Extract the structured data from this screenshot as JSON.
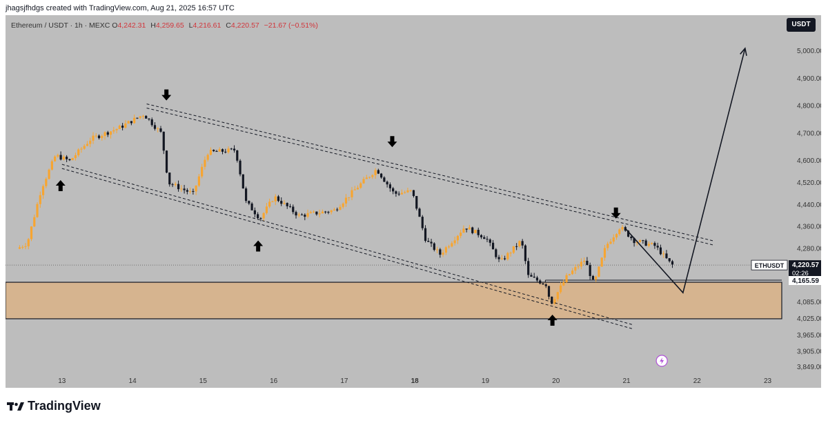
{
  "header": {
    "credit": "jhagsjfhdgs created with TradingView.com, Aug 21, 2025 16:57 UTC"
  },
  "legend": {
    "symbol": "Ethereum / USDT · 1h · MEXC",
    "o_label": "O",
    "o": "4,242.31",
    "h_label": "H",
    "h": "4,259.65",
    "l_label": "L",
    "l": "4,216.61",
    "c_label": "C",
    "c": "4,220.57",
    "change": "−21.67 (−0.51%)"
  },
  "currency_button": "USDT",
  "branding": {
    "name": "TradingView"
  },
  "colors": {
    "background": "#bdbdbd",
    "candle_up": "#f7a531",
    "candle_down": "#131722",
    "zone_fill": "#d6b48f",
    "label_bg": "#131722"
  },
  "icons": {
    "lightning": "lightning-icon",
    "arrow_up": "arrow-up-icon",
    "arrow_down": "arrow-down-icon"
  },
  "chart_data": {
    "type": "candlestick",
    "symbol": "ETHUSDT",
    "interval": "1h",
    "exchange": "MEXC",
    "x_ticks": [
      "13",
      "14",
      "15",
      "16",
      "17",
      "18",
      "19",
      "20",
      "21",
      "22",
      "23"
    ],
    "x_tick_days": [
      13,
      14,
      15,
      16,
      17,
      18,
      19,
      20,
      21,
      22,
      23
    ],
    "xlim": [
      12.2,
      23.2
    ],
    "y_ticks": [
      "5,000.00",
      "4,900.00",
      "4,800.00",
      "4,700.00",
      "4,600.00",
      "4,520.00",
      "4,440.00",
      "4,360.00",
      "4,280.00",
      "4,165.00",
      "4,085.00",
      "4,025.00",
      "3,965.00",
      "3,905.00",
      "3,849.00"
    ],
    "y_tick_values": [
      5000,
      4900,
      4800,
      4700,
      4600,
      4520,
      4440,
      4360,
      4280,
      4165,
      4085,
      4025,
      3965,
      3905,
      3849
    ],
    "ylim": [
      3830,
      5050
    ],
    "price_key": [
      {
        "day": 12.4,
        "price": 4280
      },
      {
        "day": 12.55,
        "price": 4300
      },
      {
        "day": 12.75,
        "price": 4500
      },
      {
        "day": 12.95,
        "price": 4620
      },
      {
        "day": 13.15,
        "price": 4600
      },
      {
        "day": 13.45,
        "price": 4680
      },
      {
        "day": 13.85,
        "price": 4720
      },
      {
        "day": 14.2,
        "price": 4770
      },
      {
        "day": 14.45,
        "price": 4700
      },
      {
        "day": 14.55,
        "price": 4520
      },
      {
        "day": 14.9,
        "price": 4480
      },
      {
        "day": 15.1,
        "price": 4630
      },
      {
        "day": 15.5,
        "price": 4640
      },
      {
        "day": 15.65,
        "price": 4450
      },
      {
        "day": 15.85,
        "price": 4390
      },
      {
        "day": 16.05,
        "price": 4470
      },
      {
        "day": 16.4,
        "price": 4400
      },
      {
        "day": 16.9,
        "price": 4420
      },
      {
        "day": 17.25,
        "price": 4510
      },
      {
        "day": 17.5,
        "price": 4570
      },
      {
        "day": 17.75,
        "price": 4480
      },
      {
        "day": 18.0,
        "price": 4490
      },
      {
        "day": 18.2,
        "price": 4310
      },
      {
        "day": 18.4,
        "price": 4260
      },
      {
        "day": 18.75,
        "price": 4360
      },
      {
        "day": 19.05,
        "price": 4320
      },
      {
        "day": 19.25,
        "price": 4230
      },
      {
        "day": 19.55,
        "price": 4310
      },
      {
        "day": 19.65,
        "price": 4180
      },
      {
        "day": 19.9,
        "price": 4150
      },
      {
        "day": 19.97,
        "price": 4080
      },
      {
        "day": 20.2,
        "price": 4180
      },
      {
        "day": 20.45,
        "price": 4240
      },
      {
        "day": 20.58,
        "price": 4150
      },
      {
        "day": 20.75,
        "price": 4290
      },
      {
        "day": 20.95,
        "price": 4360
      },
      {
        "day": 21.15,
        "price": 4310
      },
      {
        "day": 21.45,
        "price": 4290
      },
      {
        "day": 21.68,
        "price": 4221
      }
    ],
    "last_price": {
      "label": "ETHUSDT",
      "price": "4,220.57",
      "countdown": "02:26",
      "value": 4220.57
    },
    "level_line": {
      "price": "4,165.59",
      "value": 4165.59
    },
    "demand_zone": {
      "price_low": 4025,
      "price_high": 4158,
      "day_start": 12.2,
      "day_end": 23.2
    },
    "channel_upper": {
      "from": {
        "day": 14.2,
        "price": 4800
      },
      "to": {
        "day": 22.25,
        "price": 4300
      }
    },
    "channel_lower": {
      "from": {
        "day": 13.0,
        "price": 4580
      },
      "to": {
        "day": 21.1,
        "price": 3995
      }
    },
    "projection": [
      {
        "day": 20.98,
        "price": 4355
      },
      {
        "day": 21.8,
        "price": 4120
      },
      {
        "day": 22.68,
        "price": 5010
      }
    ],
    "arrows_down": [
      {
        "day": 14.48,
        "price": 4840
      },
      {
        "day": 17.68,
        "price": 4670
      },
      {
        "day": 20.85,
        "price": 4410
      }
    ],
    "arrows_up": [
      {
        "day": 12.98,
        "price": 4510
      },
      {
        "day": 15.78,
        "price": 4290
      },
      {
        "day": 19.95,
        "price": 4020
      }
    ]
  }
}
